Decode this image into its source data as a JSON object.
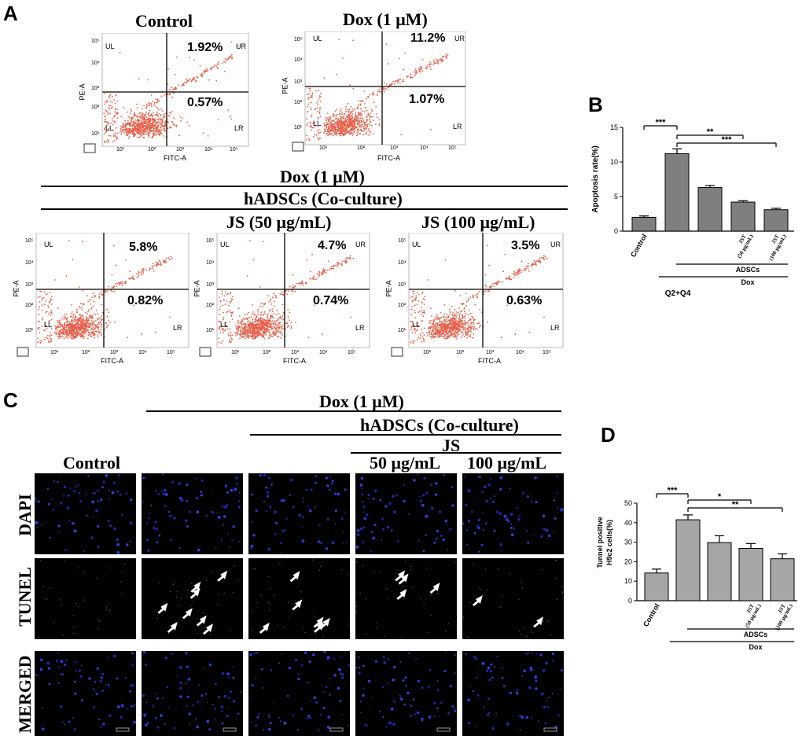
{
  "panels": {
    "a": "A",
    "b": "B",
    "c": "C",
    "d": "D"
  },
  "panel_a": {
    "plots": [
      {
        "title": "Control",
        "ur": "1.92%",
        "lr": "0.57%"
      },
      {
        "title": "Dox (1 μM)",
        "ur": "11.2%",
        "lr": "1.07%"
      },
      {
        "title": "",
        "ur": "5.8%",
        "lr": "0.82%"
      },
      {
        "title": "",
        "ur": "4.7%",
        "lr": "0.74%"
      },
      {
        "title": "",
        "ur": "3.5%",
        "lr": "0.63%"
      }
    ],
    "quadrants": {
      "ul": "UL",
      "ur": "UR",
      "ll": "LL",
      "lr": "LR"
    },
    "x_axis": "FITC-A",
    "y_axis": "PE-A",
    "header_dox": "Dox (1 μM)",
    "header_hadsc": "hADSCs (Co-culture)",
    "js50": "JS (50 μg/mL)",
    "js100": "JS (100 μg/mL)"
  },
  "panel_c": {
    "header_dox": "Dox (1 μM)",
    "header_hadsc": "hADSCs (Co-culture)",
    "header_js": "JS",
    "col_control": "Control",
    "col_50": "50 μg/mL",
    "col_100": "100 μg/mL",
    "rows": [
      "DAPI",
      "TUNEL",
      "MERGED"
    ],
    "arrow_counts": [
      0,
      8,
      6,
      4,
      2
    ]
  },
  "chart_data": [
    {
      "type": "bar",
      "panel": "B",
      "categories": [
        "Control",
        "",
        "",
        "JST (50 μg/mL)",
        "JST (100 μg/mL)"
      ],
      "values": [
        2.0,
        11.2,
        6.3,
        4.2,
        3.1
      ],
      "errors": [
        0.2,
        0.7,
        0.3,
        0.2,
        0.2
      ],
      "ylabel": "Apoptosis rate(%)",
      "ylim": [
        0,
        15
      ],
      "yticks": [
        0,
        5,
        10,
        15
      ],
      "group_labels": [
        "ADSCs",
        "Dox"
      ],
      "footer": "Q2+Q4",
      "significance": [
        "***",
        "**",
        "***"
      ]
    },
    {
      "type": "bar",
      "panel": "D",
      "categories": [
        "Control",
        "",
        "",
        "JST (50 μg/mL)",
        "JST (100 μg/mL)"
      ],
      "values": [
        14.2,
        41.5,
        29.8,
        26.8,
        21.5
      ],
      "errors": [
        2.0,
        2.5,
        3.5,
        2.5,
        2.5
      ],
      "ylabel": "Tunnel positive H9c2 cells(%)",
      "ylabel_lines": [
        "Tunnel positive",
        "H9c2 cells(%)"
      ],
      "ylim": [
        0,
        50
      ],
      "yticks": [
        0,
        10,
        20,
        30,
        40,
        50
      ],
      "group_labels": [
        "ADSCs",
        "Dox"
      ],
      "significance": [
        "***",
        "*",
        "**"
      ]
    }
  ]
}
